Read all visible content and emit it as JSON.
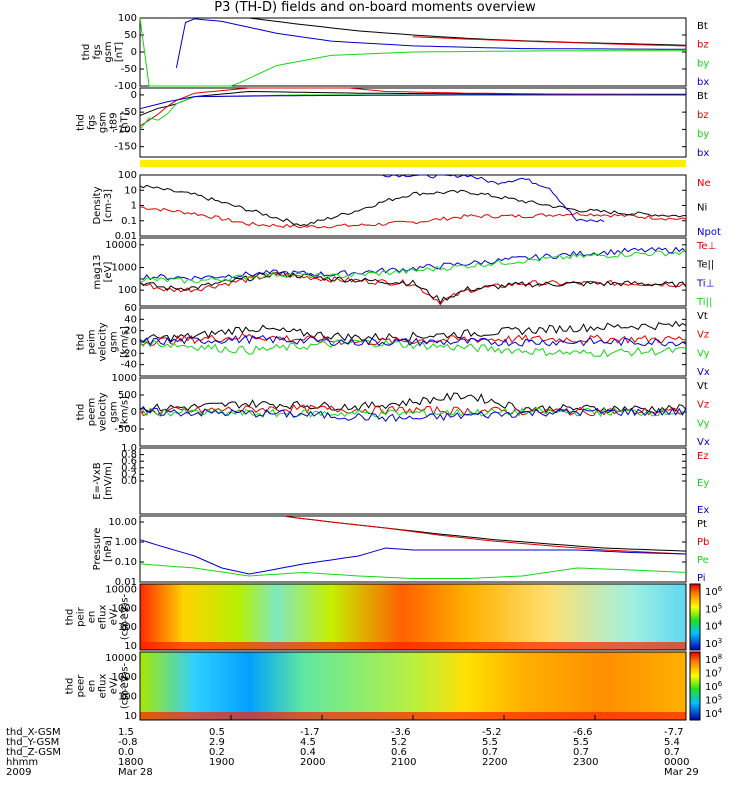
{
  "title": "P3 (TH-D) fields and on-board moments overview",
  "colors": {
    "black": "#000000",
    "red": "#e00000",
    "green": "#16d616",
    "blue": "#0000cc",
    "yellow": "#ffee00"
  },
  "chart_data": [
    {
      "type": "line",
      "panel": "fgs",
      "ylabel": [
        "thd",
        "fgs",
        "gsm",
        "[nT]"
      ],
      "ylim": [
        -100,
        100
      ],
      "yticks": [
        "100",
        "50",
        "0",
        "-50",
        "-100"
      ],
      "legend": [
        "Bt",
        "bz",
        "by",
        "bx"
      ],
      "series": [
        {
          "name": "Bt",
          "color": "black",
          "x": [
            0.12,
            0.2,
            0.3,
            0.4,
            0.5,
            0.6,
            0.7,
            0.8,
            0.9,
            1.0
          ],
          "values": [
            100,
            100,
            80,
            62,
            50,
            40,
            33,
            28,
            24,
            20
          ]
        },
        {
          "name": "bz",
          "color": "red",
          "x": [
            0.5,
            0.6,
            0.7,
            0.8,
            0.9,
            1.0
          ],
          "values": [
            45,
            38,
            32,
            27,
            22,
            18
          ]
        },
        {
          "name": "by",
          "color": "green",
          "x": [
            0.0,
            0.01,
            0.015,
            0.17,
            0.25,
            0.35,
            0.5,
            0.7,
            1.0
          ],
          "values": [
            100,
            60,
            -100,
            -100,
            -40,
            -10,
            0,
            3,
            4
          ]
        },
        {
          "name": "bx",
          "color": "blue",
          "x": [
            0.06,
            0.085,
            0.15,
            0.25,
            0.35,
            0.5,
            0.7,
            1.0
          ],
          "values": [
            -100,
            100,
            90,
            55,
            32,
            18,
            10,
            8
          ]
        }
      ]
    },
    {
      "type": "line",
      "panel": "fgs-t89",
      "ylabel": [
        "thd",
        "fgs",
        "gsm",
        "-t89",
        "[nT]"
      ],
      "ylim": [
        -180,
        20
      ],
      "yticks": [
        "0",
        "-50",
        "-100",
        "-150"
      ],
      "legend": [
        "Bt",
        "bz",
        "by",
        "bx"
      ],
      "series": [
        {
          "name": "Bt",
          "color": "black",
          "x": [
            0.0,
            0.03,
            0.06,
            0.1,
            0.2,
            0.4,
            0.6,
            0.8,
            1.0
          ],
          "values": [
            -60,
            -40,
            -30,
            -5,
            10,
            5,
            3,
            2,
            2
          ]
        },
        {
          "name": "bz",
          "color": "red",
          "x": [
            0.0,
            0.03,
            0.06,
            0.1,
            0.2,
            0.35,
            0.45,
            0.6,
            0.8,
            1.0
          ],
          "values": [
            -90,
            -60,
            -20,
            5,
            20,
            25,
            10,
            5,
            2,
            0
          ]
        },
        {
          "name": "by",
          "color": "green",
          "x": [
            0.0,
            0.02,
            0.04,
            0.06,
            0.1,
            0.3,
            0.6,
            1.0
          ],
          "values": [
            -100,
            -60,
            -80,
            -30,
            -5,
            0,
            0,
            0
          ]
        },
        {
          "name": "bx",
          "color": "blue",
          "x": [
            0.0,
            0.05,
            0.1,
            0.3,
            0.6,
            1.0
          ],
          "values": [
            -40,
            -20,
            -5,
            -2,
            0,
            0
          ]
        }
      ]
    },
    {
      "type": "line",
      "panel": "density",
      "ylabel": [
        "Density",
        "[cm-3]"
      ],
      "yscale": "log",
      "ylim": [
        0.01,
        100
      ],
      "yticks": [
        "100",
        "10",
        "1",
        "0.1",
        "0.01"
      ],
      "legend": [
        "Ne",
        "Ni",
        "Npot"
      ],
      "series": [
        {
          "name": "Ne",
          "color": "red",
          "x": [
            0.0,
            0.1,
            0.2,
            0.3,
            0.4,
            0.5,
            0.6,
            0.7,
            0.8,
            0.9,
            1.0
          ],
          "values": [
            0.8,
            0.3,
            0.06,
            0.04,
            0.05,
            0.08,
            0.2,
            0.2,
            0.3,
            0.2,
            0.12
          ]
        },
        {
          "name": "Ni",
          "color": "black",
          "x": [
            0.0,
            0.1,
            0.2,
            0.3,
            0.4,
            0.45,
            0.5,
            0.6,
            0.7,
            0.8,
            0.9,
            1.0
          ],
          "values": [
            20,
            5,
            0.5,
            0.05,
            0.5,
            2,
            6,
            8,
            2,
            0.5,
            0.3,
            0.2
          ]
        },
        {
          "name": "Npot",
          "color": "blue",
          "x": [
            0.44,
            0.5,
            0.55,
            0.6,
            0.65,
            0.7,
            0.75,
            0.8,
            0.85
          ],
          "values": [
            100,
            100,
            80,
            100,
            30,
            60,
            15,
            0.1,
            0.1
          ]
        }
      ]
    },
    {
      "type": "line",
      "panel": "temperature",
      "ylabel": [
        "mag13",
        "[eV]"
      ],
      "yscale": "log",
      "ylim": [
        20,
        20000
      ],
      "yticks": [
        "10000",
        "1000",
        "100"
      ],
      "legend": [
        "Te⊥",
        "Te||",
        "Ti⊥",
        "Ti||"
      ],
      "series": [
        {
          "name": "Te⊥",
          "color": "red",
          "x": [
            0.0,
            0.05,
            0.1,
            0.25,
            0.35,
            0.5,
            0.55,
            0.6,
            0.7,
            0.8,
            0.9,
            1.0
          ],
          "values": [
            200,
            100,
            110,
            500,
            300,
            200,
            30,
            100,
            200,
            200,
            200,
            180
          ]
        },
        {
          "name": "Te||",
          "color": "black",
          "x": [
            0.0,
            0.05,
            0.1,
            0.25,
            0.35,
            0.5,
            0.55,
            0.6,
            0.7,
            0.8,
            0.9,
            1.0
          ],
          "values": [
            220,
            120,
            130,
            550,
            320,
            210,
            35,
            110,
            180,
            190,
            200,
            170
          ]
        },
        {
          "name": "Ti⊥",
          "color": "blue",
          "x": [
            0.0,
            0.1,
            0.25,
            0.35,
            0.5,
            0.6,
            0.7,
            0.8,
            0.9,
            1.0
          ],
          "values": [
            400,
            350,
            600,
            500,
            900,
            1500,
            2500,
            4000,
            5500,
            6000
          ]
        },
        {
          "name": "Ti||",
          "color": "green",
          "x": [
            0.0,
            0.1,
            0.25,
            0.35,
            0.5,
            0.6,
            0.7,
            0.8,
            0.9,
            1.0
          ],
          "values": [
            300,
            250,
            500,
            400,
            700,
            1200,
            2000,
            3000,
            4000,
            4500
          ]
        }
      ]
    },
    {
      "type": "line",
      "panel": "peim-velocity",
      "ylabel": [
        "thd",
        "peim",
        "velocity",
        "gsm",
        "[km/s]"
      ],
      "ylim": [
        -60,
        60
      ],
      "yticks": [
        "60",
        "40",
        "20",
        "0",
        "-20",
        "-40"
      ],
      "legend": [
        "Vt",
        "Vz",
        "Vy",
        "Vx"
      ],
      "series": [
        {
          "name": "Vt",
          "color": "black",
          "x": [
            0.0,
            0.1,
            0.2,
            0.3,
            0.4,
            0.5,
            0.6,
            0.7,
            0.8,
            0.9,
            1.0
          ],
          "values": [
            5,
            10,
            25,
            15,
            8,
            10,
            15,
            20,
            25,
            28,
            30
          ]
        },
        {
          "name": "Vz",
          "color": "red",
          "x": [
            0.0,
            0.2,
            0.4,
            0.6,
            0.8,
            1.0
          ],
          "values": [
            0,
            10,
            0,
            5,
            5,
            5
          ]
        },
        {
          "name": "Vy",
          "color": "green",
          "x": [
            0.0,
            0.2,
            0.4,
            0.6,
            0.8,
            1.0
          ],
          "values": [
            0,
            -15,
            0,
            -10,
            -20,
            -15
          ]
        },
        {
          "name": "Vx",
          "color": "blue",
          "x": [
            0.0,
            0.2,
            0.4,
            0.6,
            0.8,
            1.0
          ],
          "values": [
            0,
            5,
            0,
            0,
            0,
            0
          ]
        }
      ]
    },
    {
      "type": "line",
      "panel": "peem-velocity",
      "ylabel": [
        "thd",
        "peem",
        "velocity",
        "gsm",
        "[km/s]"
      ],
      "ylim": [
        -1000,
        1000
      ],
      "yticks": [
        "1000",
        "500",
        "0",
        "-500"
      ],
      "legend": [
        "Vt",
        "Vz",
        "Vy",
        "Vx"
      ],
      "series": [
        {
          "name": "Vt",
          "color": "black",
          "x": [
            0.0,
            0.1,
            0.2,
            0.3,
            0.4,
            0.5,
            0.6,
            0.7,
            0.8,
            0.9,
            1.0
          ],
          "values": [
            100,
            150,
            250,
            200,
            150,
            300,
            500,
            100,
            100,
            100,
            100
          ]
        },
        {
          "name": "Vz",
          "color": "red",
          "x": [
            0.0,
            0.25,
            0.5,
            0.75,
            1.0
          ],
          "values": [
            0,
            100,
            50,
            20,
            10
          ]
        },
        {
          "name": "Vy",
          "color": "green",
          "x": [
            0.0,
            0.25,
            0.5,
            0.75,
            1.0
          ],
          "values": [
            0,
            -50,
            -30,
            0,
            0
          ]
        },
        {
          "name": "Vx",
          "color": "blue",
          "x": [
            0.0,
            0.25,
            0.5,
            0.6,
            0.75,
            1.0
          ],
          "values": [
            0,
            -50,
            -200,
            -100,
            0,
            0
          ]
        }
      ]
    },
    {
      "type": "line",
      "panel": "exb",
      "ylabel": [
        "E=-VxB",
        "[mV/m]"
      ],
      "ylim": [
        -1.0,
        1.0
      ],
      "yticks": [
        "1.0",
        "0.8",
        "0.6",
        "0.4",
        "0.2",
        "0.0"
      ],
      "legend": [
        "Ez",
        "Ey",
        "Ex"
      ],
      "series": []
    },
    {
      "type": "line",
      "panel": "pressure",
      "ylabel": [
        "Pressure",
        "[nPa]"
      ],
      "yscale": "log",
      "ylim": [
        0.01,
        20
      ],
      "yticks": [
        "10.00",
        "1.00",
        "0.10",
        "0.01"
      ],
      "legend": [
        "Pt",
        "Pb",
        "Pe",
        "Pi"
      ],
      "series": [
        {
          "name": "Pt",
          "color": "black",
          "x": [
            0.26,
            0.35,
            0.45,
            0.55,
            0.65,
            0.75,
            0.85,
            1.0
          ],
          "values": [
            20,
            10,
            5,
            2.5,
            1.3,
            0.8,
            0.5,
            0.35
          ]
        },
        {
          "name": "Pb",
          "color": "red",
          "x": [
            0.26,
            0.35,
            0.45,
            0.55,
            0.65,
            0.75,
            0.85,
            1.0
          ],
          "values": [
            20,
            10,
            5,
            2.2,
            1.1,
            0.65,
            0.4,
            0.25
          ]
        },
        {
          "name": "Pe",
          "color": "green",
          "x": [
            0.0,
            0.1,
            0.2,
            0.3,
            0.4,
            0.5,
            0.6,
            0.7,
            0.8,
            0.9,
            1.0
          ],
          "values": [
            0.08,
            0.05,
            0.02,
            0.03,
            0.02,
            0.015,
            0.015,
            0.02,
            0.05,
            0.04,
            0.03
          ]
        },
        {
          "name": "Pi",
          "color": "blue",
          "x": [
            0.0,
            0.05,
            0.1,
            0.15,
            0.2,
            0.3,
            0.4,
            0.45,
            0.5,
            0.6,
            0.7,
            0.8,
            0.9,
            1.0
          ],
          "values": [
            1.3,
            0.5,
            0.2,
            0.05,
            0.025,
            0.08,
            0.2,
            0.5,
            0.4,
            0.4,
            0.4,
            0.4,
            0.3,
            0.25
          ]
        }
      ]
    },
    {
      "type": "heatmap",
      "panel": "peir-en-eflux",
      "ylabel": [
        "thd",
        "peir",
        "en",
        "eflux",
        "eV/",
        "(cm^2-s-",
        "sr-eV)"
      ],
      "yscale": "log",
      "yticks": [
        "10000",
        "1000",
        "100",
        "10"
      ],
      "colorbar_ticks": [
        "10^6",
        "10^5",
        "10^4",
        "10^3"
      ]
    },
    {
      "type": "heatmap",
      "panel": "peer-en-eflux",
      "ylabel": [
        "thd",
        "peer",
        "en",
        "eflux",
        "eV/",
        "(cm^2-s-",
        "sr-eV)"
      ],
      "yscale": "log",
      "yticks": [
        "10000",
        "1000",
        "100",
        "10"
      ],
      "colorbar_ticks": [
        "10^8",
        "10^7",
        "10^6",
        "10^5",
        "10^4"
      ]
    }
  ],
  "xaxis": {
    "rows": [
      {
        "label": "thd_X-GSM",
        "values": [
          "1.5",
          "0.5",
          "-1.7",
          "-3.6",
          "-5.2",
          "-6.6",
          "-7.7"
        ]
      },
      {
        "label": "thd_Y-GSM",
        "values": [
          "-0.8",
          "2.9",
          "4.5",
          "5.2",
          "5.5",
          "5.5",
          "5.4"
        ]
      },
      {
        "label": "thd_Z-GSM",
        "values": [
          "0.0",
          "0.2",
          "0.4",
          "0.6",
          "0.7",
          "0.7",
          "0.7"
        ]
      },
      {
        "label": "hhmm",
        "values": [
          "1800",
          "1900",
          "2000",
          "2100",
          "2200",
          "2300",
          "0000"
        ]
      }
    ],
    "year": "2009",
    "date_start": "Mar 28",
    "date_end": "Mar 29"
  }
}
